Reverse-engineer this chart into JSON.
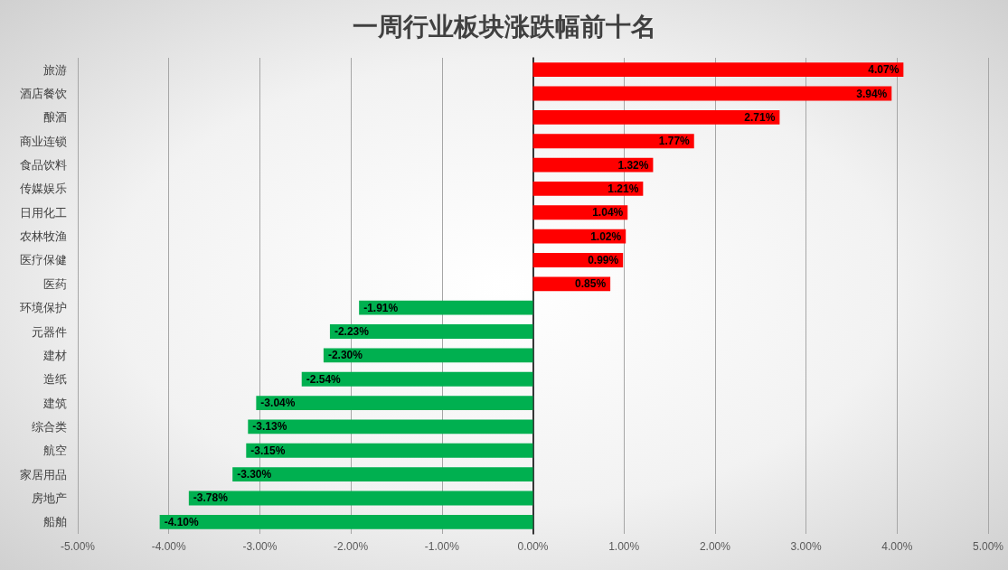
{
  "chart_data": {
    "type": "bar",
    "orientation": "horizontal",
    "title": "一周行业板块涨跌幅前十名",
    "categories": [
      "旅游",
      "酒店餐饮",
      "酿酒",
      "商业连锁",
      "食品饮料",
      "传媒娱乐",
      "日用化工",
      "农林牧渔",
      "医疗保健",
      "医药",
      "环境保护",
      "元器件",
      "建材",
      "造纸",
      "建筑",
      "综合类",
      "航空",
      "家居用品",
      "房地产",
      "船舶"
    ],
    "values": [
      4.07,
      3.94,
      2.71,
      1.77,
      1.32,
      1.21,
      1.04,
      1.02,
      0.99,
      0.85,
      -1.91,
      -2.23,
      -2.3,
      -2.54,
      -3.04,
      -3.13,
      -3.15,
      -3.3,
      -3.78,
      -4.1
    ],
    "colors": [
      "#ff0000",
      "#ff0000",
      "#ff0000",
      "#ff0000",
      "#ff0000",
      "#ff0000",
      "#ff0000",
      "#ff0000",
      "#ff0000",
      "#ff0000",
      "#00b050",
      "#00b050",
      "#00b050",
      "#00b050",
      "#00b050",
      "#00b050",
      "#00b050",
      "#00b050",
      "#00b050",
      "#00b050"
    ],
    "value_labels": [
      "4.07%",
      "3.94%",
      "2.71%",
      "1.77%",
      "1.32%",
      "1.21%",
      "1.04%",
      "1.02%",
      "0.99%",
      "0.85%",
      "-1.91%",
      "-2.23%",
      "-2.30%",
      "-2.54%",
      "-3.04%",
      "-3.13%",
      "-3.15%",
      "-3.30%",
      "-3.78%",
      "-4.10%"
    ],
    "xlim": [
      -5,
      5
    ],
    "xticks": [
      {
        "value": -5,
        "label": "-5.00%"
      },
      {
        "value": -4,
        "label": "-4.00%"
      },
      {
        "value": -3,
        "label": "-3.00%"
      },
      {
        "value": -2,
        "label": "-2.00%"
      },
      {
        "value": -1,
        "label": "-1.00%"
      },
      {
        "value": 0,
        "label": "0.00%"
      },
      {
        "value": 1,
        "label": "1.00%"
      },
      {
        "value": 2,
        "label": "2.00%"
      },
      {
        "value": 3,
        "label": "3.00%"
      },
      {
        "value": 4,
        "label": "4.00%"
      },
      {
        "value": 5,
        "label": "5.00%"
      }
    ],
    "grid": "x"
  }
}
